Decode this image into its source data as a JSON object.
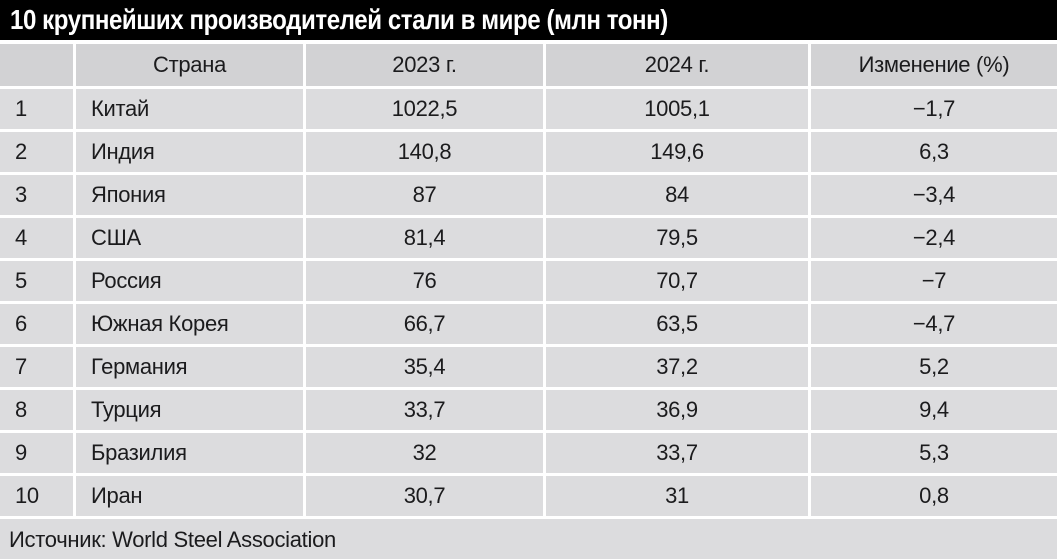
{
  "title": "10 крупнейших производителей стали в мире (млн тонн)",
  "footer": {
    "source": "Источник: World Steel Association"
  },
  "colors": {
    "title_bg": "#000000",
    "title_text": "#ffffff",
    "header_bg": "#d2d2d4",
    "row_bg": "#dcdcde",
    "separator": "#ffffff",
    "text": "#1b1b1d"
  },
  "table": {
    "columns": [
      "",
      "Страна",
      "2023 г.",
      "2024 г.",
      "Изменение (%)"
    ],
    "rows": [
      {
        "rank": "1",
        "country": "Китай",
        "y2023": "1022,5",
        "y2024": "1005,1",
        "change": "−1,7"
      },
      {
        "rank": "2",
        "country": "Индия",
        "y2023": "140,8",
        "y2024": "149,6",
        "change": "6,3"
      },
      {
        "rank": "3",
        "country": "Япония",
        "y2023": "87",
        "y2024": "84",
        "change": "−3,4"
      },
      {
        "rank": "4",
        "country": "США",
        "y2023": "81,4",
        "y2024": "79,5",
        "change": "−2,4"
      },
      {
        "rank": "5",
        "country": "Россия",
        "y2023": "76",
        "y2024": "70,7",
        "change": "−7"
      },
      {
        "rank": "6",
        "country": "Южная Корея",
        "y2023": "66,7",
        "y2024": "63,5",
        "change": "−4,7"
      },
      {
        "rank": "7",
        "country": "Германия",
        "y2023": "35,4",
        "y2024": "37,2",
        "change": "5,2"
      },
      {
        "rank": "8",
        "country": "Турция",
        "y2023": "33,7",
        "y2024": "36,9",
        "change": "9,4"
      },
      {
        "rank": "9",
        "country": "Бразилия",
        "y2023": "32",
        "y2024": "33,7",
        "change": "5,3"
      },
      {
        "rank": "10",
        "country": "Иран",
        "y2023": "30,7",
        "y2024": "31",
        "change": "0,8"
      }
    ]
  },
  "chart_data": {
    "type": "table",
    "title": "10 крупнейших производителей стали в мире (млн тонн)",
    "columns": [
      "Страна",
      "2023 г.",
      "2024 г.",
      "Изменение (%)"
    ],
    "categories": [
      "Китай",
      "Индия",
      "Япония",
      "США",
      "Россия",
      "Южная Корея",
      "Германия",
      "Турция",
      "Бразилия",
      "Иран"
    ],
    "series": [
      {
        "name": "2023 г.",
        "values": [
          1022.5,
          140.8,
          87,
          81.4,
          76,
          66.7,
          35.4,
          33.7,
          32,
          30.7
        ]
      },
      {
        "name": "2024 г.",
        "values": [
          1005.1,
          149.6,
          84,
          79.5,
          70.7,
          63.5,
          37.2,
          36.9,
          33.7,
          31
        ]
      },
      {
        "name": "Изменение (%)",
        "values": [
          -1.7,
          6.3,
          -3.4,
          -2.4,
          -7,
          -4.7,
          5.2,
          9.4,
          5.3,
          0.8
        ]
      }
    ],
    "source": "Источник: World Steel Association"
  }
}
